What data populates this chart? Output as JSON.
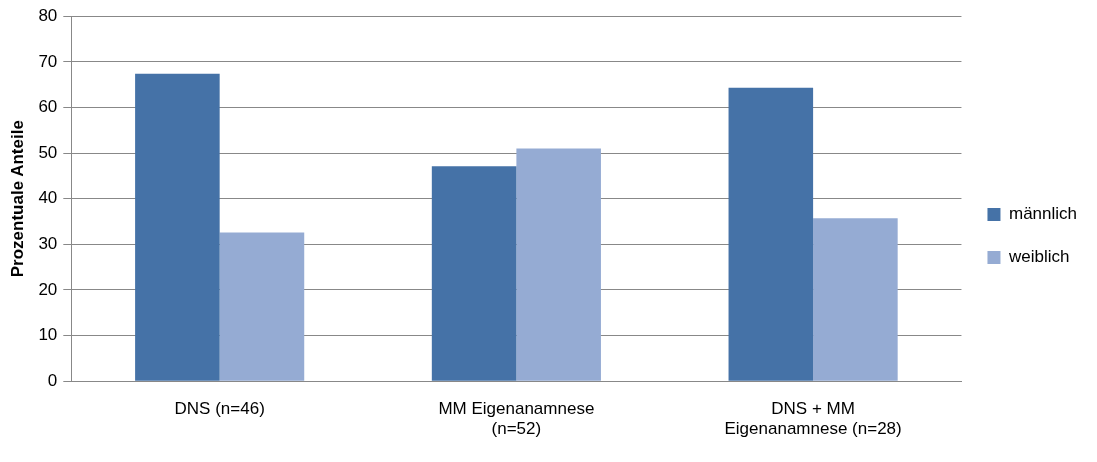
{
  "chart_data": {
    "type": "bar",
    "ylabel": "Prozentuale Anteile",
    "categories": [
      "DNS (n=46)",
      "MM Eigenanamnese (n=52)",
      "DNS + MM Eigenanamnese (n=28)"
    ],
    "series": [
      {
        "name": "männlich",
        "color": "#4572a7",
        "values": [
          67.4,
          47.1,
          64.3
        ]
      },
      {
        "name": "weiblich",
        "color": "#95abd3",
        "values": [
          32.6,
          51.0,
          35.7
        ]
      }
    ],
    "ylim": [
      0,
      80
    ],
    "yticks": [
      0,
      10,
      20,
      30,
      40,
      50,
      60,
      70,
      80
    ],
    "grid": "y",
    "legend": "right"
  }
}
